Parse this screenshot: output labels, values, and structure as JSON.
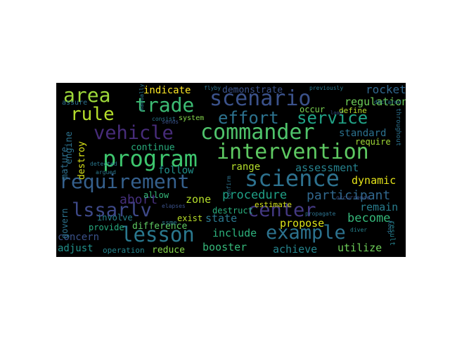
{
  "wordcloud": {
    "background": "#000000",
    "words": [
      {
        "text": "commander",
        "color": "#4fc36b"
      },
      {
        "text": "intervention",
        "color": "#5ec962"
      },
      {
        "text": "program",
        "color": "#3ec66e"
      },
      {
        "text": "requirement",
        "color": "#35608d"
      },
      {
        "text": "science",
        "color": "#2d718e"
      },
      {
        "text": "vehicle",
        "color": "#472c7a"
      },
      {
        "text": "scenario",
        "color": "#3b528b"
      },
      {
        "text": "effort",
        "color": "#2c728e"
      },
      {
        "text": "service",
        "color": "#20a386"
      },
      {
        "text": "area",
        "color": "#9ed93a"
      },
      {
        "text": "trade",
        "color": "#3dbc74"
      },
      {
        "text": "rule",
        "color": "#b5de2b"
      },
      {
        "text": "lesson",
        "color": "#2a788e"
      },
      {
        "text": "lssarlv",
        "color": "#3e4989"
      },
      {
        "text": "example",
        "color": "#2c728e"
      },
      {
        "text": "center",
        "color": "#443983"
      },
      {
        "text": "participant",
        "color": "#31688e"
      },
      {
        "text": "procedure",
        "color": "#1fa187"
      },
      {
        "text": "assessment",
        "color": "#26828e"
      },
      {
        "text": "rocket",
        "color": "#31688e"
      },
      {
        "text": "regulation",
        "color": "#6ece58"
      },
      {
        "text": "dynamic",
        "color": "#e5e419"
      },
      {
        "text": "abort",
        "color": "#46307e"
      },
      {
        "text": "zone",
        "color": "#b5de2b"
      },
      {
        "text": "state",
        "color": "#2a788e"
      },
      {
        "text": "include",
        "color": "#2db27d"
      },
      {
        "text": "booster",
        "color": "#35b779"
      },
      {
        "text": "difference",
        "color": "#5ec962"
      },
      {
        "text": "become",
        "color": "#35b779"
      },
      {
        "text": "propose",
        "color": "#dde318"
      },
      {
        "text": "remain",
        "color": "#287d8e"
      },
      {
        "text": "achieve",
        "color": "#25858e"
      },
      {
        "text": "utilize",
        "color": "#6ece58"
      },
      {
        "text": "adjust",
        "color": "#21918c"
      },
      {
        "text": "concern",
        "color": "#3b528b"
      },
      {
        "text": "reduce",
        "color": "#84d44b"
      },
      {
        "text": "operation",
        "color": "#25858e"
      },
      {
        "text": "standard",
        "color": "#2c728e"
      },
      {
        "text": "range",
        "color": "#b5de2b"
      },
      {
        "text": "follow",
        "color": "#21918c"
      },
      {
        "text": "continue",
        "color": "#29af7f"
      },
      {
        "text": "mature",
        "color": "#2e6f8e"
      },
      {
        "text": "destroy",
        "color": "#d8e219"
      },
      {
        "text": "engine",
        "color": "#2c728e"
      },
      {
        "text": "indicate",
        "color": "#fde725"
      },
      {
        "text": "demonstrate",
        "color": "#3b528b"
      },
      {
        "text": "occur",
        "color": "#7ad151"
      },
      {
        "text": "define",
        "color": "#b5de2b"
      },
      {
        "text": "require",
        "color": "#a2da37"
      },
      {
        "text": "provide",
        "color": "#27ad81"
      },
      {
        "text": "involve",
        "color": "#26828e"
      },
      {
        "text": "exist",
        "color": "#b8de29"
      },
      {
        "text": "destruct",
        "color": "#2ab07f"
      },
      {
        "text": "estimate",
        "color": "#d2e21b"
      },
      {
        "text": "govern",
        "color": "#2c728e"
      },
      {
        "text": "allow",
        "color": "#35b779"
      },
      {
        "text": "system",
        "color": "#84d44b"
      },
      {
        "text": "assure",
        "color": "#2c728e"
      },
      {
        "text": "detected",
        "color": "#2a788e"
      },
      {
        "text": "argued",
        "color": "#2a788e"
      },
      {
        "text": "ssme",
        "color": "#2a788e"
      },
      {
        "text": "elapses",
        "color": "#3b528b"
      },
      {
        "text": "previously",
        "color": "#2a788e"
      },
      {
        "text": "declared",
        "color": "#2a788e"
      },
      {
        "text": "consist",
        "color": "#2a788e"
      },
      {
        "text": "manually",
        "color": "#2a788e"
      },
      {
        "text": "result",
        "color": "#26828e"
      },
      {
        "text": "throughout",
        "color": "#2c728e"
      },
      {
        "text": "confirm",
        "color": "#2c728e"
      },
      {
        "text": "occurrence",
        "color": "#3b528b"
      },
      {
        "text": "keep",
        "color": "#2c728e"
      },
      {
        "text": "propagate",
        "color": "#2c728e"
      },
      {
        "text": "sends",
        "color": "#3b528b"
      },
      {
        "text": "flyby",
        "color": "#2c728e"
      },
      {
        "text": "loop",
        "color": "#3b528b"
      },
      {
        "text": "diver",
        "color": "#26828e"
      }
    ]
  }
}
